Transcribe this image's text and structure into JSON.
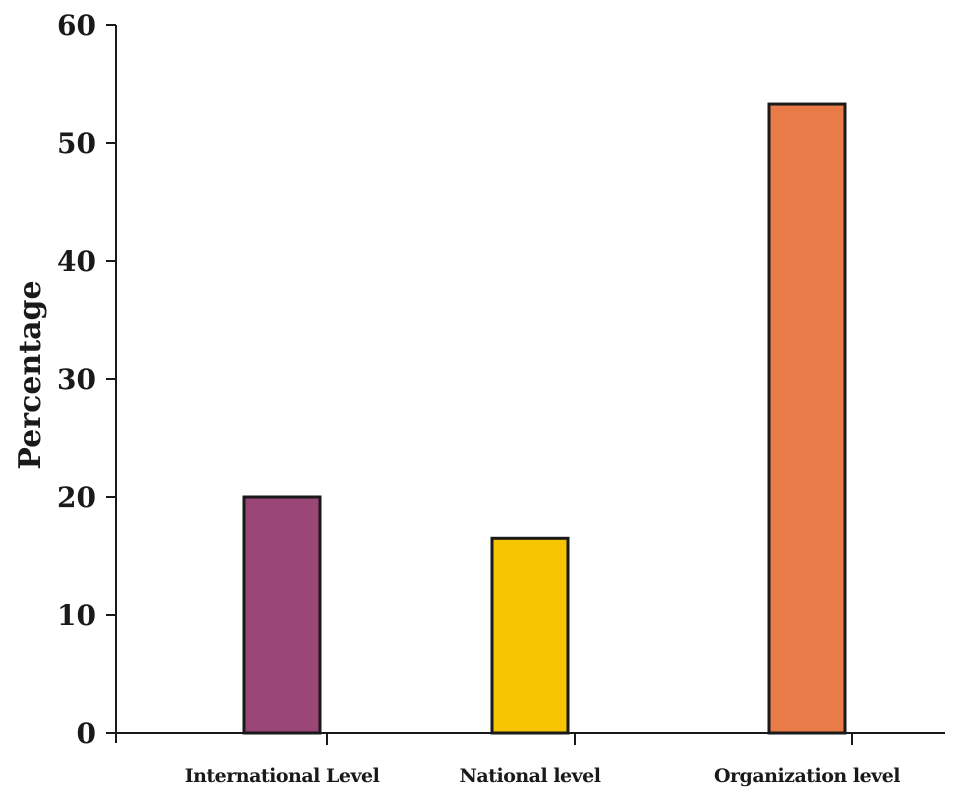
{
  "chart_data": {
    "type": "bar",
    "categories": [
      "International Level",
      "National level",
      "Organization level"
    ],
    "values": [
      20,
      16.5,
      53.3
    ],
    "colors": [
      "#9a4777",
      "#f6c400",
      "#e87b47"
    ],
    "xlabel": "",
    "ylabel": "Percentage",
    "ylim": [
      0,
      60
    ],
    "yticks": [
      0,
      10,
      20,
      30,
      40,
      50,
      60
    ],
    "grid": false
  }
}
